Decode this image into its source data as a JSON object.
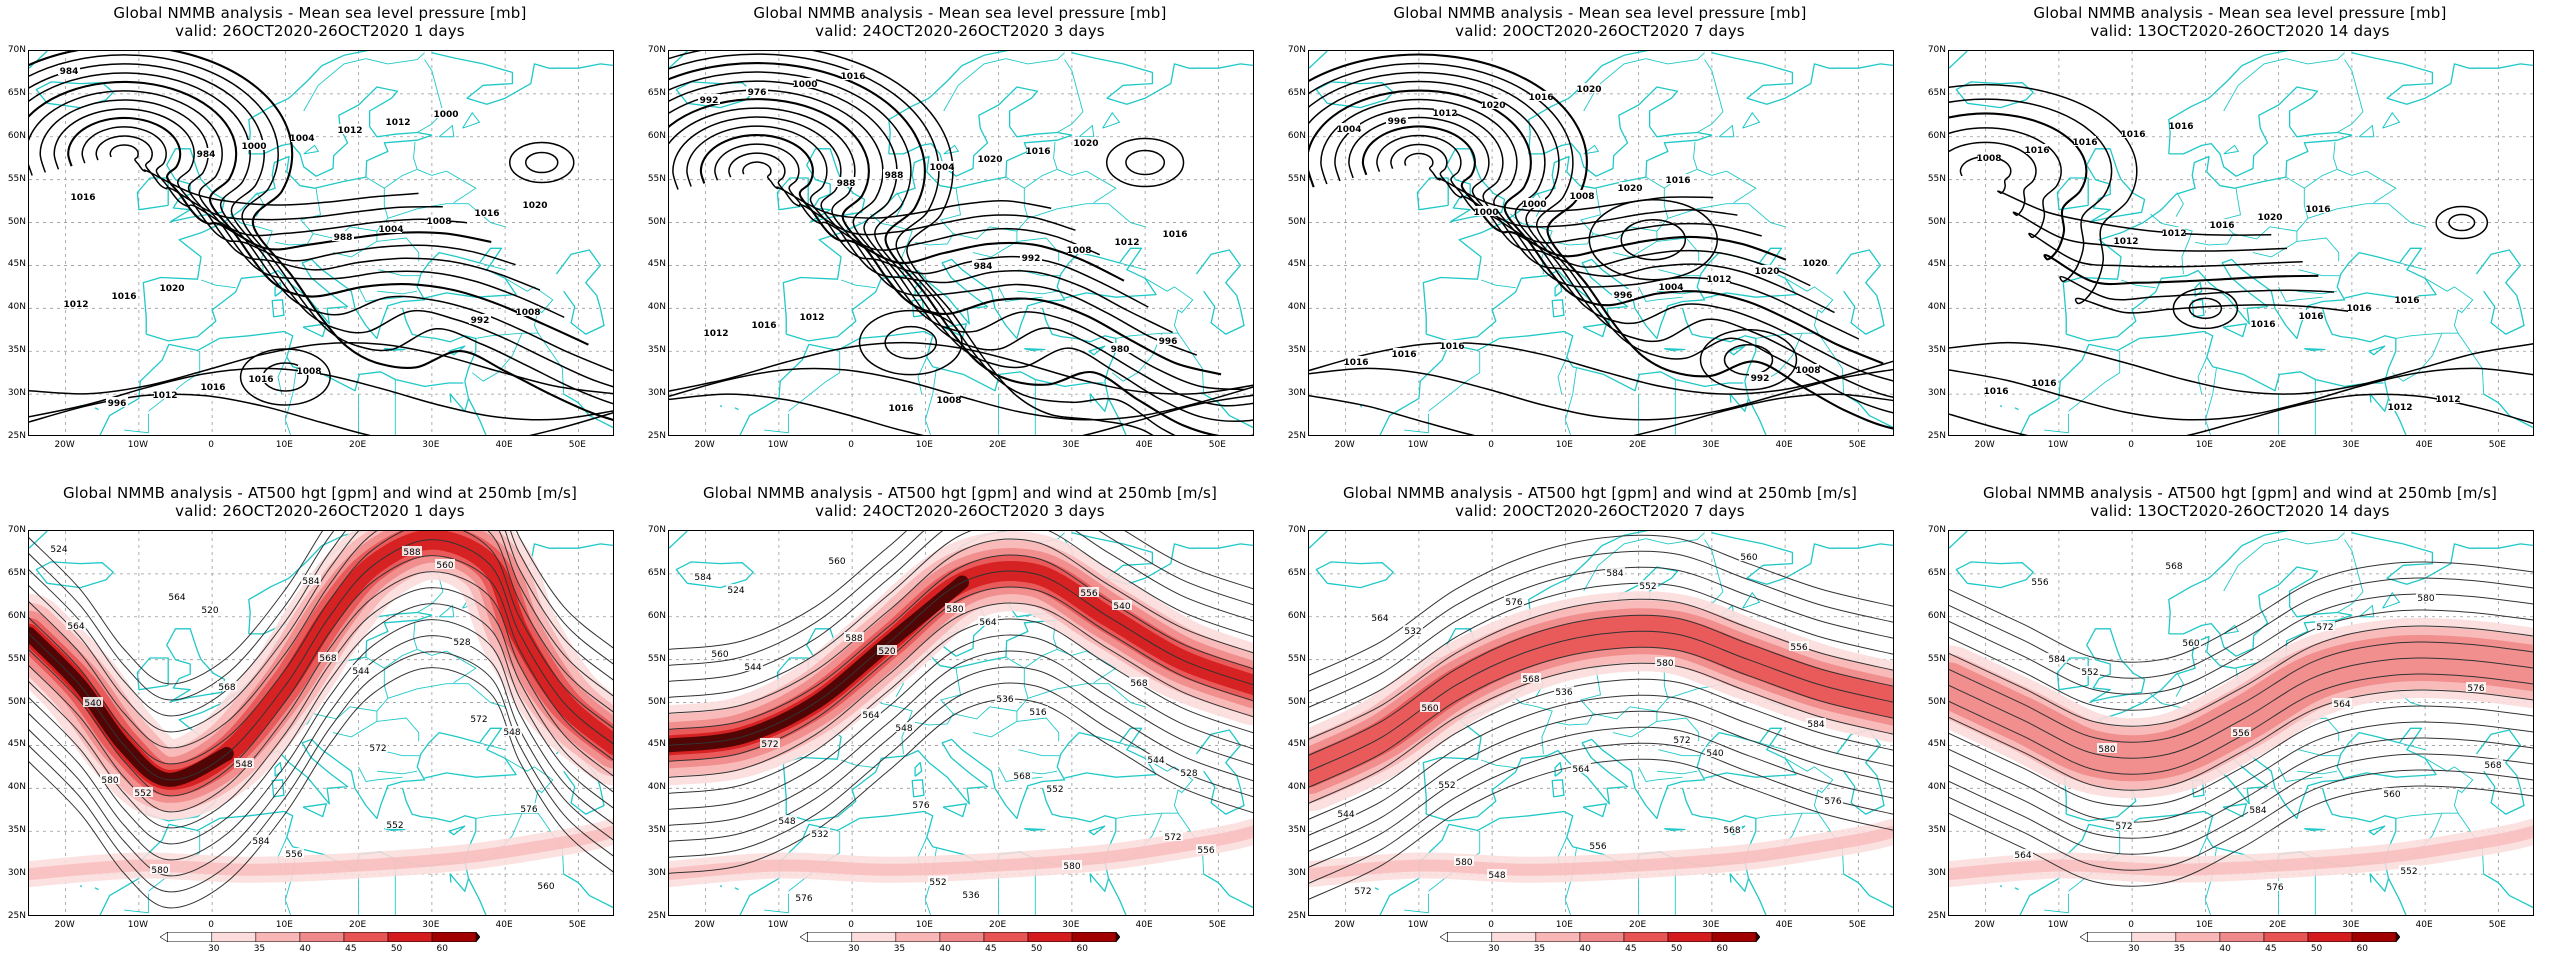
{
  "panels": [
    {
      "title": "Global NMMB analysis - Mean sea level pressure [mb]",
      "subtitle": "valid: 26OCT2020-26OCT2020   1 days",
      "type": "mslp",
      "contour_labels": [
        "984",
        "984",
        "988",
        "992",
        "996",
        "1000",
        "1004",
        "1008",
        "1012",
        "1004",
        "1008",
        "1012",
        "1016",
        "1012",
        "1016",
        "1016",
        "1016",
        "1012",
        "1020",
        "1020",
        "1008",
        "1000",
        "1016"
      ]
    },
    {
      "title": "Global NMMB analysis - Mean sea level pressure [mb]",
      "subtitle": "valid: 24OCT2020-26OCT2020   3 days",
      "type": "mslp",
      "contour_labels": [
        "992",
        "988",
        "984",
        "980",
        "976",
        "988",
        "992",
        "996",
        "1000",
        "1004",
        "1008",
        "1012",
        "1016",
        "1020",
        "1012",
        "1016",
        "1016",
        "1016",
        "1016",
        "1012",
        "1008",
        "1020"
      ]
    },
    {
      "title": "Global NMMB analysis - Mean sea level pressure [mb]",
      "subtitle": "valid: 20OCT2020-26OCT2020   7 days",
      "type": "mslp",
      "contour_labels": [
        "1004",
        "1000",
        "996",
        "992",
        "996",
        "1000",
        "1004",
        "1008",
        "1012",
        "1008",
        "1012",
        "1016",
        "1020",
        "1020",
        "1020",
        "1016",
        "1016",
        "1016",
        "1020",
        "1016",
        "1020"
      ]
    },
    {
      "title": "Global NMMB analysis - Mean sea level pressure [mb]",
      "subtitle": "valid: 13OCT2020-26OCT2020   14 days",
      "type": "mslp",
      "contour_labels": [
        "1008",
        "1012",
        "1016",
        "1012",
        "1016",
        "1012",
        "1016",
        "1012",
        "1016",
        "1016",
        "1016",
        "1016",
        "1016",
        "1020",
        "1016",
        "1016",
        "1016",
        "1016"
      ]
    },
    {
      "title": "Global NMMB analysis - AT500 hgt [gpm] and wind at 250mb [m/s]",
      "subtitle": "valid: 26OCT2020-26OCT2020   1 days",
      "type": "z500",
      "contour_labels": [
        "524",
        "520",
        "544",
        "548",
        "552",
        "556",
        "560",
        "564",
        "568",
        "572",
        "576",
        "580",
        "584",
        "528",
        "540",
        "548",
        "552",
        "560",
        "564",
        "568",
        "572",
        "580",
        "584",
        "588"
      ]
    },
    {
      "title": "Global NMMB analysis - AT500 hgt [gpm] and wind at 250mb [m/s]",
      "subtitle": "valid: 24OCT2020-26OCT2020   3 days",
      "type": "z500",
      "contour_labels": [
        "524",
        "520",
        "516",
        "528",
        "532",
        "536",
        "540",
        "544",
        "548",
        "552",
        "556",
        "560",
        "564",
        "568",
        "572",
        "576",
        "580",
        "584",
        "588",
        "536",
        "544",
        "548",
        "552",
        "556",
        "560",
        "564",
        "568",
        "572",
        "576",
        "580"
      ]
    },
    {
      "title": "Global NMMB analysis - AT500 hgt [gpm] and wind at 250mb [m/s]",
      "subtitle": "valid: 20OCT2020-26OCT2020   7 days",
      "type": "z500",
      "contour_labels": [
        "532",
        "536",
        "540",
        "544",
        "548",
        "552",
        "556",
        "560",
        "564",
        "568",
        "572",
        "576",
        "580",
        "584",
        "552",
        "556",
        "560",
        "564",
        "568",
        "572",
        "576",
        "580",
        "584"
      ]
    },
    {
      "title": "Global NMMB analysis - AT500 hgt [gpm] and wind at 250mb [m/s]",
      "subtitle": "valid: 13OCT2020-26OCT2020   14 days",
      "type": "z500",
      "contour_labels": [
        "552",
        "556",
        "560",
        "564",
        "568",
        "572",
        "576",
        "580",
        "584",
        "552",
        "556",
        "560",
        "564",
        "568",
        "572",
        "576",
        "580",
        "584"
      ]
    }
  ],
  "axes": {
    "lat_labels": [
      "70N",
      "65N",
      "60N",
      "55N",
      "50N",
      "45N",
      "40N",
      "35N",
      "30N",
      "25N"
    ],
    "lon_labels": [
      "20W",
      "10W",
      "0",
      "10E",
      "20E",
      "30E",
      "40E",
      "50E"
    ]
  },
  "colorbar": {
    "labels": [
      "30",
      "35",
      "40",
      "45",
      "50",
      "60"
    ],
    "colors": [
      "#ffffff",
      "#fcdcdc",
      "#f8b6b6",
      "#f08a8a",
      "#e85454",
      "#d41c1c",
      "#a00000",
      "#3a0000"
    ]
  },
  "colors": {
    "coastline": "#20c8c8",
    "contour": "#000000",
    "grid": "#9a9a9a",
    "wind_max": "#3a0000"
  }
}
